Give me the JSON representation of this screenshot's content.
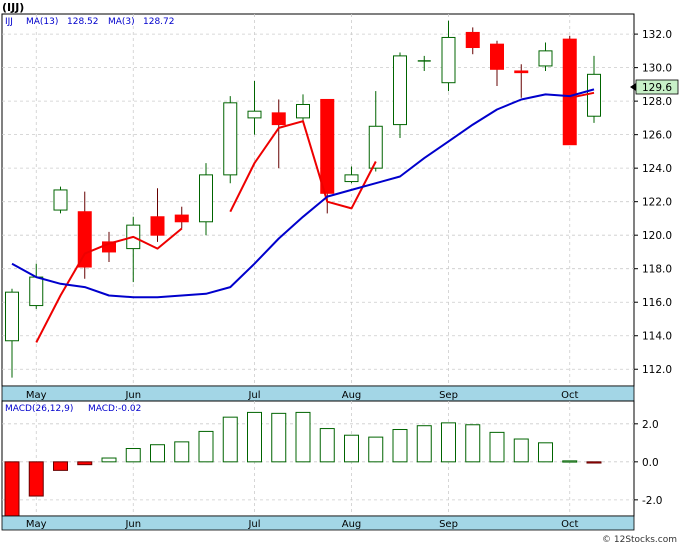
{
  "header": {
    "title": "(IJJ)",
    "watermark": "© 12Stocks.com"
  },
  "price_legend": {
    "symbol": "IJJ",
    "ma_fast_label": "MA(13)",
    "ma_fast_value": "128.52",
    "ma_slow_label": "MA(3)",
    "ma_slow_value": "128.72"
  },
  "macd_legend": {
    "label": "MACD(26,12,9)",
    "value_label": "MACD:-0.02"
  },
  "colors": {
    "up_candle_fill": "#ffffff",
    "up_candle_stroke": "#006400",
    "down_candle": "#ff0000",
    "ma_fast": "#0000cc",
    "ma_slow": "#ee0000",
    "axis_bar": "#a3d6e6",
    "last_price_box": "#c8f0c8",
    "grid": "#cccccc",
    "macd_up": "#006400",
    "macd_down": "#cc0000"
  },
  "chart_data": [
    {
      "type": "candlestick",
      "title": "",
      "x_labels": [
        "May",
        "Jun",
        "Jul",
        "Aug",
        "Sep",
        "Oct"
      ],
      "x_label_index": [
        1,
        5,
        10,
        14,
        18,
        23
      ],
      "ylim": [
        111.0,
        133.2
      ],
      "yticks": [
        112.0,
        114.0,
        116.0,
        118.0,
        120.0,
        122.0,
        124.0,
        126.0,
        128.0,
        130.0,
        132.0
      ],
      "grid": true,
      "last_price": "129.6",
      "candles": [
        {
          "o": 113.7,
          "h": 116.8,
          "l": 111.5,
          "c": 116.6
        },
        {
          "o": 115.8,
          "h": 118.3,
          "l": 115.6,
          "c": 117.5
        },
        {
          "o": 121.5,
          "h": 122.9,
          "l": 121.3,
          "c": 122.7
        },
        {
          "o": 121.4,
          "h": 122.6,
          "l": 117.4,
          "c": 118.1
        },
        {
          "o": 119.6,
          "h": 120.2,
          "l": 118.4,
          "c": 119.0
        },
        {
          "o": 119.2,
          "h": 121.1,
          "l": 117.2,
          "c": 120.6
        },
        {
          "o": 121.1,
          "h": 122.8,
          "l": 119.6,
          "c": 120.0
        },
        {
          "o": 121.2,
          "h": 121.7,
          "l": 120.4,
          "c": 120.8
        },
        {
          "o": 120.8,
          "h": 124.3,
          "l": 120.0,
          "c": 123.6
        },
        {
          "o": 123.6,
          "h": 128.3,
          "l": 123.1,
          "c": 127.9
        },
        {
          "o": 127.0,
          "h": 129.2,
          "l": 126.0,
          "c": 127.4
        },
        {
          "o": 127.3,
          "h": 128.1,
          "l": 124.0,
          "c": 126.6
        },
        {
          "o": 127.0,
          "h": 128.4,
          "l": 126.7,
          "c": 127.8
        },
        {
          "o": 128.1,
          "h": 128.1,
          "l": 121.3,
          "c": 122.5
        },
        {
          "o": 123.2,
          "h": 124.1,
          "l": 123.1,
          "c": 123.6
        },
        {
          "o": 124.0,
          "h": 128.6,
          "l": 123.8,
          "c": 126.5
        },
        {
          "o": 126.6,
          "h": 130.9,
          "l": 125.8,
          "c": 130.7
        },
        {
          "o": 130.4,
          "h": 130.7,
          "l": 129.8,
          "c": 130.4
        },
        {
          "o": 129.1,
          "h": 132.8,
          "l": 128.6,
          "c": 131.8
        },
        {
          "o": 132.1,
          "h": 132.4,
          "l": 130.8,
          "c": 131.2
        },
        {
          "o": 131.4,
          "h": 131.6,
          "l": 128.9,
          "c": 129.9
        },
        {
          "o": 129.8,
          "h": 130.2,
          "l": 128.2,
          "c": 129.7
        },
        {
          "o": 130.1,
          "h": 131.5,
          "l": 129.8,
          "c": 131.0
        },
        {
          "o": 131.7,
          "h": 131.9,
          "l": 125.4,
          "c": 125.4
        },
        {
          "o": 127.1,
          "h": 130.7,
          "l": 126.7,
          "c": 129.6
        }
      ],
      "series": [
        {
          "name": "MA(13)",
          "values": [
            null,
            113.6,
            116.4,
            118.9,
            119.5,
            119.9,
            119.2,
            120.4,
            null,
            121.4,
            124.3,
            126.4,
            126.8,
            122.0,
            121.6,
            124.4,
            null,
            null,
            null,
            null,
            null,
            null,
            null,
            128.2,
            128.5
          ]
        },
        {
          "name": "MA(3)",
          "values": [
            118.3,
            117.5,
            117.1,
            116.9,
            116.4,
            116.3,
            116.3,
            116.4,
            116.5,
            116.9,
            118.3,
            119.8,
            121.1,
            122.3,
            122.7,
            123.1,
            123.5,
            124.6,
            125.6,
            126.6,
            127.5,
            128.1,
            128.4,
            128.3,
            128.7
          ]
        }
      ],
      "series_x": [
        null,
        null,
        null,
        null,
        null,
        null,
        null,
        null,
        null,
        null,
        null,
        null,
        null,
        null,
        null,
        null,
        null,
        null,
        null,
        null,
        null,
        null,
        null,
        null,
        null
      ]
    },
    {
      "type": "bar",
      "title": "",
      "x_labels": [
        "May",
        "Jun",
        "Jul",
        "Aug",
        "Sep",
        "Oct"
      ],
      "ylim": [
        -2.85,
        3.2
      ],
      "yticks": [
        -2.0,
        0.0,
        2.0
      ],
      "values": [
        -2.9,
        -1.8,
        -0.45,
        -0.15,
        0.2,
        0.7,
        0.9,
        1.05,
        1.6,
        2.35,
        2.6,
        2.55,
        2.6,
        1.75,
        1.4,
        1.3,
        1.7,
        1.9,
        2.05,
        1.95,
        1.55,
        1.2,
        1.0,
        0.05,
        -0.05
      ]
    }
  ]
}
